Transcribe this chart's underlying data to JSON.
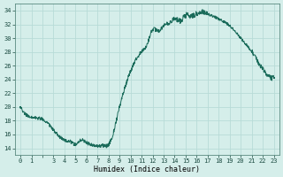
{
  "title": "",
  "xlabel": "Humidex (Indice chaleur)",
  "ylabel": "",
  "background_color": "#d5eeea",
  "grid_color": "#b8dbd7",
  "line_color": "#1a6b5a",
  "marker_color": "#1a6b5a",
  "xlim": [
    -0.5,
    23.5
  ],
  "ylim": [
    13,
    35
  ],
  "yticks": [
    14,
    16,
    18,
    20,
    22,
    24,
    26,
    28,
    30,
    32,
    34
  ],
  "xtick_labels": [
    "0",
    "1",
    "",
    "3",
    "4",
    "5",
    "6",
    "7",
    "8",
    "9",
    "10",
    "11",
    "12",
    "13",
    "14",
    "15",
    "16",
    "17",
    "18",
    "19",
    "20",
    "21",
    "22",
    "23"
  ],
  "hours": [
    0,
    1,
    2,
    3,
    4,
    4.5,
    5,
    5.5,
    6,
    6.5,
    7,
    7.5,
    8,
    9,
    10,
    11,
    11.5,
    12,
    12.5,
    13,
    13.5,
    14,
    14.5,
    15,
    15.5,
    16,
    16.5,
    17,
    17.5,
    18,
    19,
    20,
    21,
    22,
    22.5,
    23
  ],
  "values": [
    20.0,
    18.5,
    18.2,
    16.7,
    15.2,
    15.0,
    14.6,
    15.2,
    14.8,
    14.5,
    14.3,
    14.4,
    14.5,
    20.0,
    25.2,
    28.0,
    29.0,
    31.2,
    31.0,
    31.8,
    32.2,
    32.8,
    32.5,
    33.3,
    33.2,
    33.6,
    33.8,
    33.5,
    33.2,
    32.8,
    31.8,
    30.0,
    28.0,
    25.5,
    24.5,
    24.2
  ]
}
